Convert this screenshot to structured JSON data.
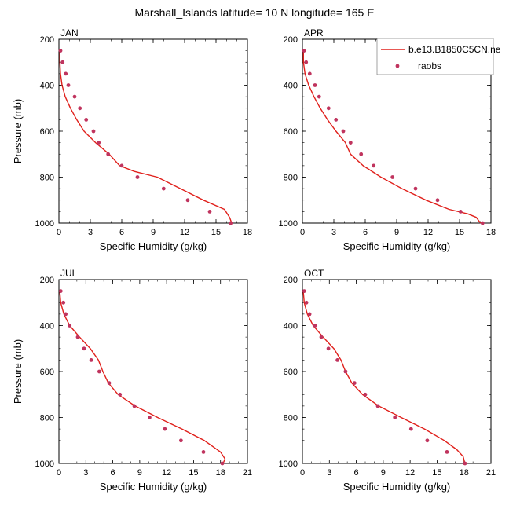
{
  "figure": {
    "title": "Marshall_Islands  latitude= 10 N longitude= 165 E",
    "legend": {
      "model_label": "b.e13.B1850C5CN.ne",
      "obs_label": "raobs",
      "model_color": "#e0201b",
      "obs_color": "#c0345e"
    }
  },
  "chart_data": [
    {
      "type": "line",
      "title": "JAN",
      "xlabel": "Specific Humidity (g/kg)",
      "ylabel": "Pressure (mb)",
      "xlim": [
        0,
        18
      ],
      "ylim": [
        1000,
        200
      ],
      "xticks": [
        0,
        3,
        6,
        9,
        12,
        15,
        18
      ],
      "yticks": [
        200,
        400,
        600,
        800,
        1000
      ],
      "series": [
        {
          "name": "b.e13.B1850C5CN.ne",
          "kind": "line",
          "x": [
            0.1,
            0.1,
            0.15,
            0.3,
            0.6,
            1.1,
            1.7,
            2.4,
            3.5,
            4.8,
            5.8,
            7.2,
            9.4,
            11.6,
            13.8,
            15.8,
            16.3,
            16.5
          ],
          "y": [
            250,
            300,
            350,
            400,
            450,
            500,
            550,
            600,
            650,
            700,
            750,
            775,
            800,
            850,
            900,
            940,
            975,
            1000
          ]
        },
        {
          "name": "raobs",
          "kind": "scatter",
          "x": [
            0.15,
            0.35,
            0.65,
            0.9,
            1.5,
            2.0,
            2.6,
            3.3,
            3.8,
            4.7,
            6.0,
            7.5,
            10.0,
            12.3,
            14.4,
            16.4
          ],
          "y": [
            250,
            300,
            350,
            400,
            450,
            500,
            550,
            600,
            650,
            700,
            750,
            800,
            850,
            900,
            950,
            1000
          ]
        }
      ]
    },
    {
      "type": "line",
      "title": "APR",
      "xlabel": "Specific Humidity (g/kg)",
      "ylabel": "",
      "xlim": [
        0,
        18
      ],
      "ylim": [
        1000,
        200
      ],
      "xticks": [
        0,
        3,
        6,
        9,
        12,
        15,
        18
      ],
      "yticks": [
        200,
        400,
        600,
        800,
        1000
      ],
      "series": [
        {
          "name": "b.e13.B1850C5CN.ne",
          "kind": "line",
          "x": [
            0.1,
            0.1,
            0.25,
            0.6,
            1.1,
            1.7,
            2.4,
            3.2,
            4.1,
            4.6,
            5.8,
            7.5,
            9.5,
            11.8,
            14.0,
            15.8,
            16.6,
            17.0
          ],
          "y": [
            250,
            300,
            350,
            400,
            450,
            500,
            550,
            600,
            650,
            700,
            750,
            800,
            850,
            900,
            940,
            960,
            975,
            1000
          ]
        },
        {
          "name": "raobs",
          "kind": "scatter",
          "x": [
            0.15,
            0.35,
            0.7,
            1.2,
            1.6,
            2.5,
            3.2,
            3.9,
            4.6,
            5.6,
            6.8,
            8.6,
            10.8,
            12.9,
            15.1,
            17.2
          ],
          "y": [
            250,
            300,
            350,
            400,
            450,
            500,
            550,
            600,
            650,
            700,
            750,
            800,
            850,
            900,
            950,
            1000
          ]
        }
      ]
    },
    {
      "type": "line",
      "title": "JUL",
      "xlabel": "Specific Humidity (g/kg)",
      "ylabel": "Pressure (mb)",
      "xlim": [
        0,
        21
      ],
      "ylim": [
        1000,
        200
      ],
      "xticks": [
        0,
        3,
        6,
        9,
        12,
        15,
        18,
        21
      ],
      "yticks": [
        200,
        400,
        600,
        800,
        1000
      ],
      "series": [
        {
          "name": "b.e13.B1850C5CN.ne",
          "kind": "line",
          "x": [
            0.1,
            0.2,
            0.55,
            1.2,
            2.3,
            3.5,
            4.4,
            4.9,
            5.5,
            6.6,
            8.5,
            11.0,
            13.7,
            16.2,
            18.0,
            18.5,
            18.3
          ],
          "y": [
            250,
            300,
            350,
            400,
            450,
            500,
            550,
            600,
            650,
            700,
            750,
            800,
            850,
            900,
            950,
            980,
            1000
          ]
        },
        {
          "name": "raobs",
          "kind": "scatter",
          "x": [
            0.2,
            0.5,
            0.75,
            1.2,
            2.1,
            2.8,
            3.6,
            4.5,
            5.6,
            6.8,
            8.4,
            10.1,
            11.8,
            13.6,
            16.1,
            18.2
          ],
          "y": [
            250,
            300,
            350,
            400,
            450,
            500,
            550,
            600,
            650,
            700,
            750,
            800,
            850,
            900,
            950,
            1000
          ]
        }
      ]
    },
    {
      "type": "line",
      "title": "OCT",
      "xlabel": "Specific Humidity (g/kg)",
      "ylabel": "",
      "xlim": [
        0,
        21
      ],
      "ylim": [
        1000,
        200
      ],
      "xticks": [
        0,
        3,
        6,
        9,
        12,
        15,
        18,
        21
      ],
      "yticks": [
        200,
        400,
        600,
        800,
        1000
      ],
      "series": [
        {
          "name": "b.e13.B1850C5CN.ne",
          "kind": "line",
          "x": [
            0.1,
            0.2,
            0.55,
            1.2,
            2.3,
            3.5,
            4.3,
            4.8,
            5.5,
            6.7,
            8.5,
            11.0,
            13.6,
            15.8,
            17.2,
            17.9,
            18.1
          ],
          "y": [
            250,
            300,
            350,
            400,
            450,
            500,
            550,
            600,
            650,
            700,
            750,
            800,
            850,
            900,
            940,
            970,
            1000
          ]
        },
        {
          "name": "raobs",
          "kind": "scatter",
          "x": [
            0.2,
            0.45,
            0.8,
            1.4,
            2.1,
            2.9,
            3.9,
            4.8,
            5.8,
            7.0,
            8.4,
            10.3,
            12.1,
            13.9,
            16.1,
            18.1
          ],
          "y": [
            250,
            300,
            350,
            400,
            450,
            500,
            550,
            600,
            650,
            700,
            750,
            800,
            850,
            900,
            950,
            1000
          ]
        }
      ]
    }
  ]
}
